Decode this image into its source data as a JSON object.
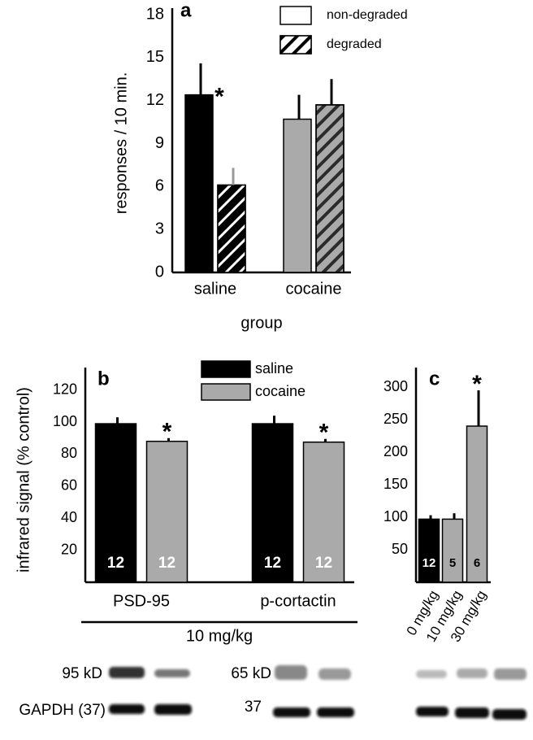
{
  "chart_data": [
    {
      "type": "bar",
      "panel": "a",
      "ylabel": "responses / 10 min.",
      "xlabel": "group",
      "categories": [
        "saline",
        "cocaine"
      ],
      "category_colors": [
        "#000000",
        "#aaaaaa"
      ],
      "series": [
        {
          "name": "non-degraded",
          "color": "#ffffff",
          "hatch": false,
          "values": [
            12.4,
            10.7
          ],
          "errors": [
            2.2,
            1.7
          ],
          "significance": [
            "*",
            null
          ]
        },
        {
          "name": "degraded",
          "color": "#ffffff",
          "hatch": true,
          "values": [
            6.1,
            11.7
          ],
          "errors": [
            1.2,
            1.8
          ],
          "significance": [
            null,
            null
          ]
        }
      ],
      "ylim": [
        0,
        18
      ],
      "yticks": [
        0,
        3,
        6,
        9,
        12,
        15,
        18
      ],
      "grid": false
    },
    {
      "type": "bar",
      "panel": "b",
      "ylabel": "infrared signal (% control)",
      "xlabel": "10 mg/kg",
      "categories": [
        "PSD-95",
        "p-cortactin"
      ],
      "series": [
        {
          "name": "saline",
          "color": "#000000",
          "hatch": false,
          "values": [
            99,
            99
          ],
          "errors": [
            4,
            5
          ],
          "n": [
            12,
            12
          ],
          "significance": [
            null,
            null
          ]
        },
        {
          "name": "cocaine",
          "color": "#aaaaaa",
          "hatch": false,
          "values": [
            88,
            87.5
          ],
          "errors": [
            2,
            2
          ],
          "n": [
            12,
            12
          ],
          "significance": [
            "*",
            "*"
          ]
        }
      ],
      "ylim": [
        0,
        130
      ],
      "yticks": [
        20,
        40,
        60,
        80,
        100,
        120
      ],
      "grid": false
    },
    {
      "type": "bar",
      "panel": "c",
      "categories": [
        "0 mg/kg",
        "10 mg/kg",
        "30 mg/kg"
      ],
      "category_colors": [
        "#000000",
        "#aaaaaa",
        "#aaaaaa"
      ],
      "series": [
        {
          "color": "#aaaaaa",
          "hatch": false,
          "values": [
            97,
            97,
            240
          ],
          "errors": [
            6,
            9,
            55
          ],
          "n": [
            12,
            5,
            6
          ],
          "significance": [
            null,
            null,
            "*"
          ]
        }
      ],
      "ylim": [
        0,
        320
      ],
      "yticks": [
        50,
        100,
        150,
        200,
        250,
        300
      ],
      "grid": false
    }
  ],
  "blots": {
    "psd95_label": "95 kD",
    "gapdh_label": "GAPDH (37)",
    "cortactin_label": "65 kD",
    "loading_label": "37"
  }
}
